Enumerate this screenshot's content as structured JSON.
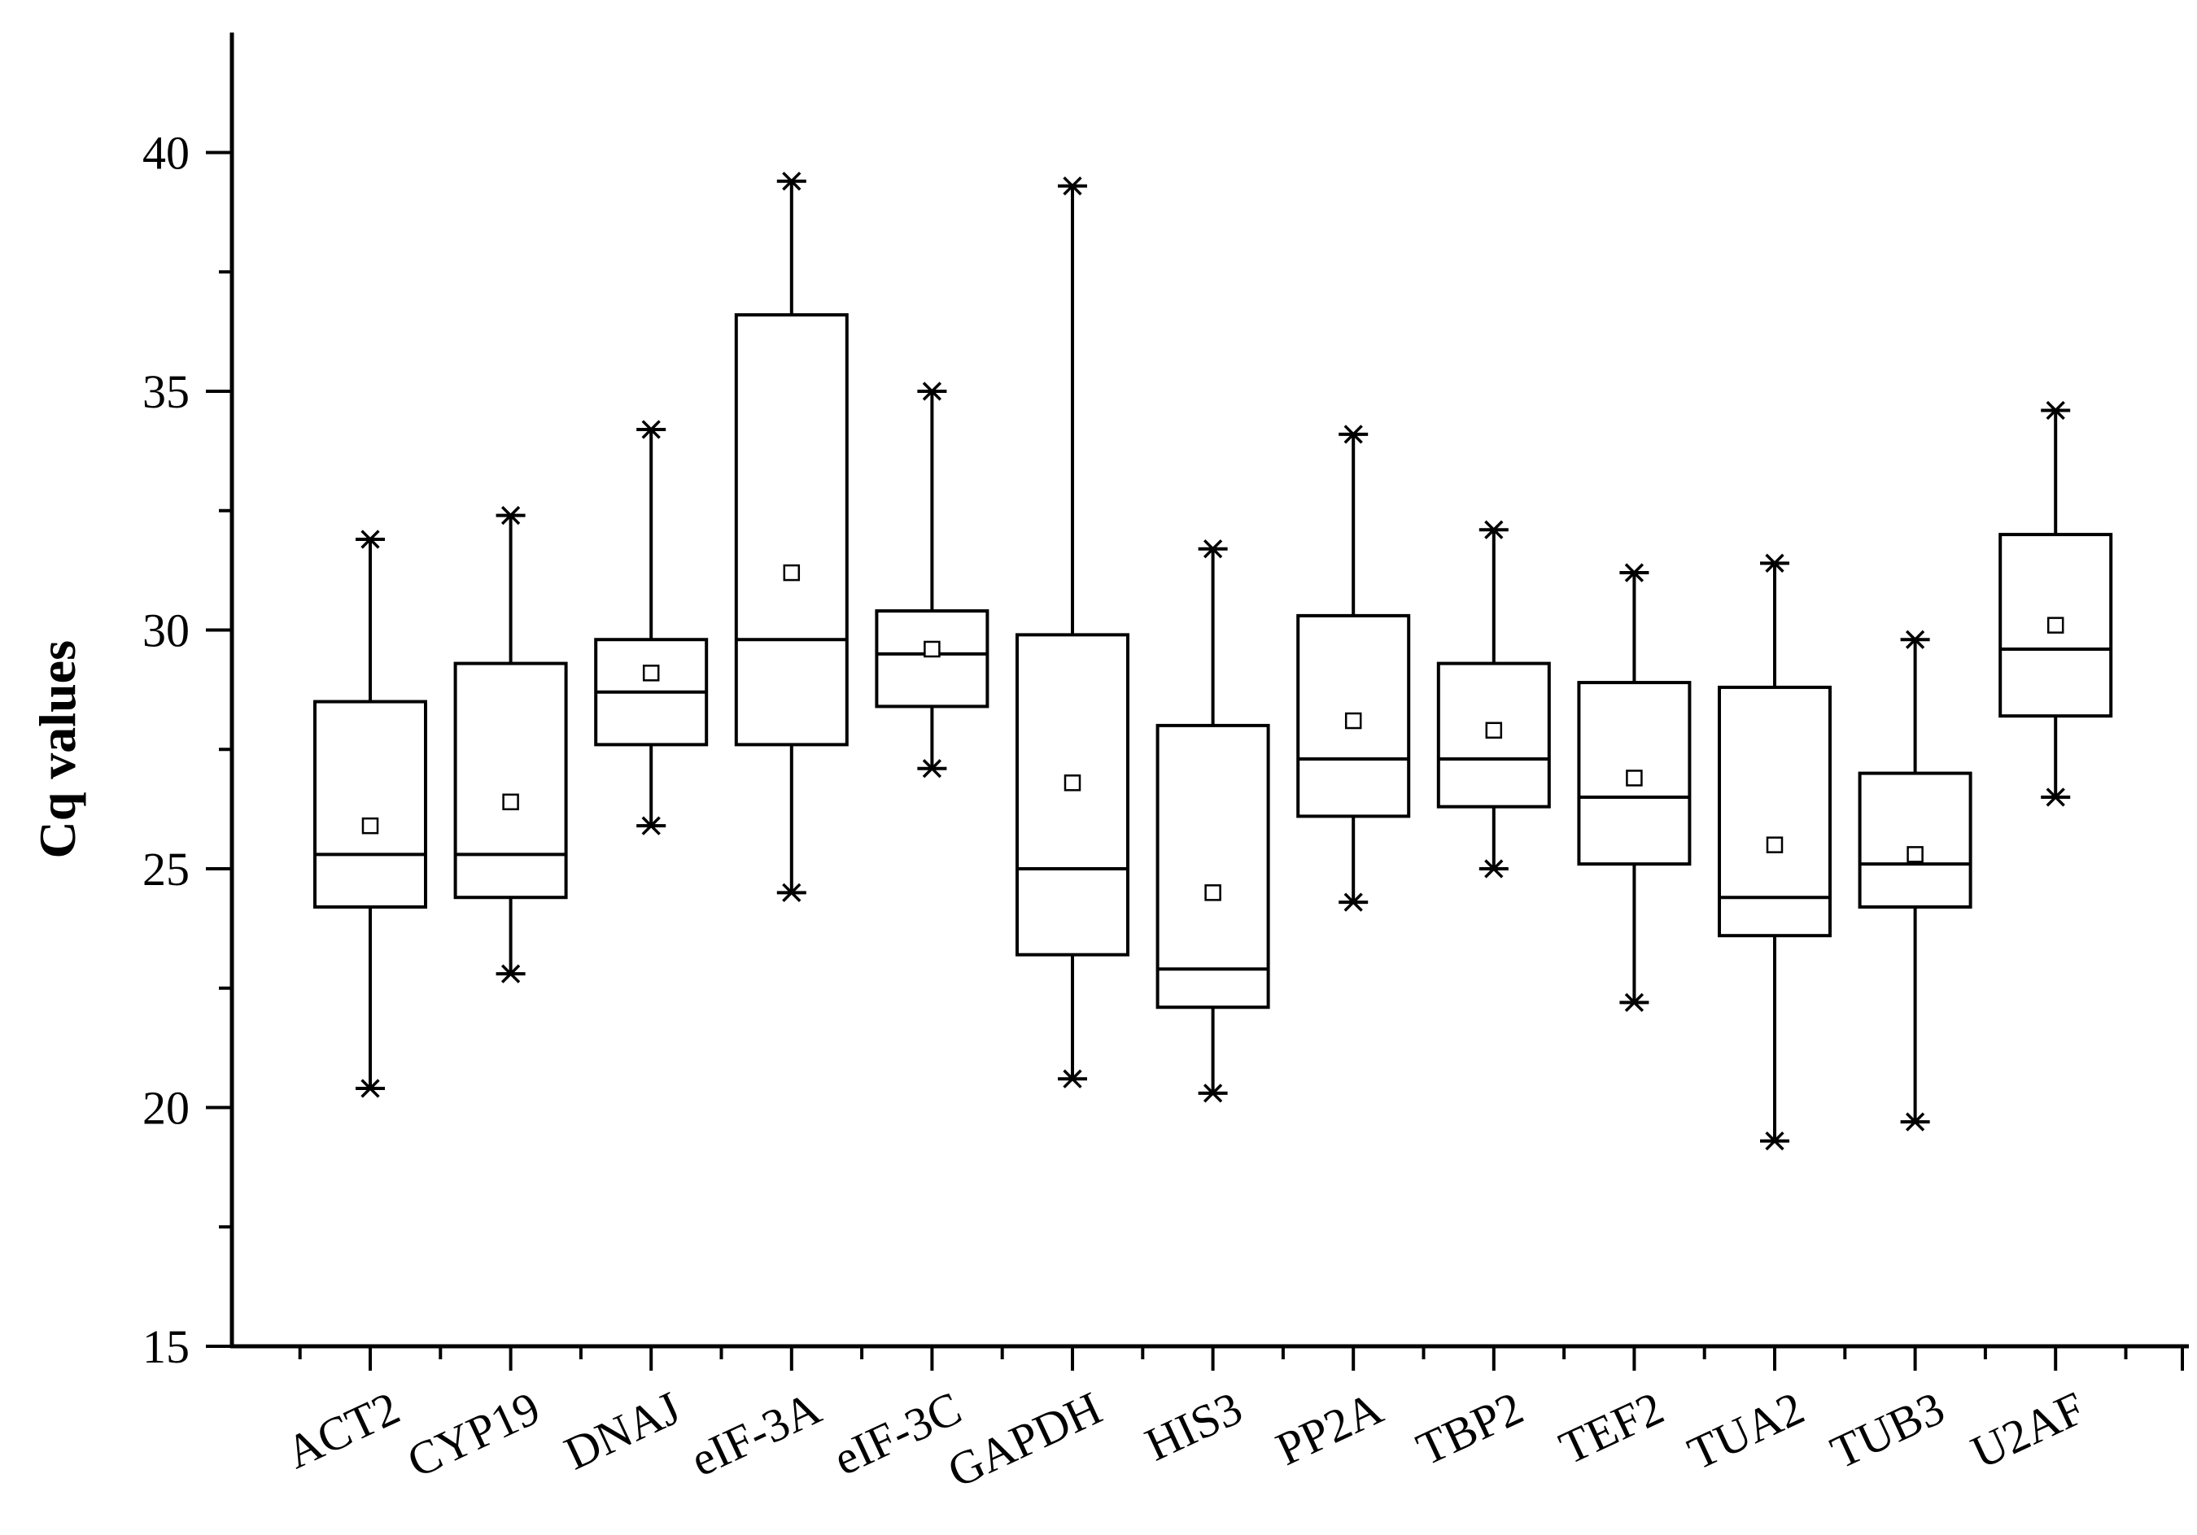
{
  "chart_data": {
    "type": "box",
    "title": "",
    "xlabel": "",
    "ylabel": "Cq values",
    "ylim": [
      15,
      42.5
    ],
    "yticks": [
      15,
      20,
      25,
      30,
      35,
      40
    ],
    "grid": false,
    "legend": "none",
    "categories": [
      "ACT2",
      "CYP19",
      "DNAJ",
      "eIF-3A",
      "eIF-3C",
      "GAPDH",
      "HIS3",
      "PP2A",
      "TBP2",
      "TEF2",
      "TUA2",
      "TUB3",
      "U2AF"
    ],
    "boxes": [
      {
        "category": "ACT2",
        "min": 20.4,
        "q1": 24.2,
        "median": 25.3,
        "q3": 28.5,
        "max": 31.9,
        "mean": 25.9
      },
      {
        "category": "CYP19",
        "min": 22.8,
        "q1": 24.4,
        "median": 25.3,
        "q3": 29.3,
        "max": 32.4,
        "mean": 26.4
      },
      {
        "category": "DNAJ",
        "min": 25.9,
        "q1": 27.6,
        "median": 28.7,
        "q3": 29.8,
        "max": 34.2,
        "mean": 29.1
      },
      {
        "category": "eIF-3A",
        "min": 24.5,
        "q1": 27.6,
        "median": 29.8,
        "q3": 36.6,
        "max": 39.4,
        "mean": 31.2
      },
      {
        "category": "eIF-3C",
        "min": 27.1,
        "q1": 28.4,
        "median": 29.5,
        "q3": 30.4,
        "max": 35.0,
        "mean": 29.6
      },
      {
        "category": "GAPDH",
        "min": 20.6,
        "q1": 23.2,
        "median": 25.0,
        "q3": 29.9,
        "max": 39.3,
        "mean": 26.8
      },
      {
        "category": "HIS3",
        "min": 20.3,
        "q1": 22.1,
        "median": 22.9,
        "q3": 28.0,
        "max": 31.7,
        "mean": 24.5
      },
      {
        "category": "PP2A",
        "min": 24.3,
        "q1": 26.1,
        "median": 27.3,
        "q3": 30.3,
        "max": 34.1,
        "mean": 28.1
      },
      {
        "category": "TBP2",
        "min": 25.0,
        "q1": 26.3,
        "median": 27.3,
        "q3": 29.3,
        "max": 32.1,
        "mean": 27.9
      },
      {
        "category": "TEF2",
        "min": 22.2,
        "q1": 25.1,
        "median": 26.5,
        "q3": 28.9,
        "max": 31.2,
        "mean": 26.9
      },
      {
        "category": "TUA2",
        "min": 19.3,
        "q1": 23.6,
        "median": 24.4,
        "q3": 28.8,
        "max": 31.4,
        "mean": 25.5
      },
      {
        "category": "TUB3",
        "min": 19.7,
        "q1": 24.2,
        "median": 25.1,
        "q3": 27.0,
        "max": 29.8,
        "mean": 25.3
      },
      {
        "category": "U2AF",
        "min": 26.5,
        "q1": 28.2,
        "median": 29.6,
        "q3": 32.0,
        "max": 34.6,
        "mean": 30.1
      }
    ]
  }
}
